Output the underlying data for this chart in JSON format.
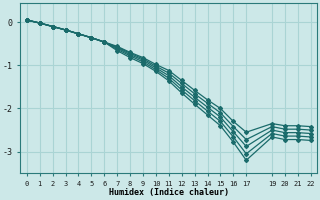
{
  "xlabel": "Humidex (Indice chaleur)",
  "ylabel": "",
  "background_color": "#cce8e8",
  "line_color": "#1a6b6b",
  "grid_color": "#aad4d4",
  "xlim": [
    -0.5,
    22.5
  ],
  "ylim": [
    -3.5,
    0.45
  ],
  "xticks": [
    0,
    1,
    2,
    3,
    4,
    5,
    6,
    7,
    8,
    9,
    10,
    11,
    12,
    13,
    14,
    15,
    16,
    17,
    19,
    20,
    21,
    22
  ],
  "yticks": [
    0,
    -1,
    -2,
    -3
  ],
  "lines": [
    {
      "x": [
        0,
        1,
        2,
        3,
        4,
        5,
        6,
        7,
        8,
        9,
        10,
        11,
        12,
        13,
        14,
        15,
        16,
        17,
        19,
        20,
        21,
        22
      ],
      "y": [
        0.05,
        -0.02,
        -0.1,
        -0.18,
        -0.27,
        -0.36,
        -0.46,
        -0.56,
        -0.7,
        -0.82,
        -0.98,
        -1.12,
        -1.35,
        -1.58,
        -1.8,
        -2.0,
        -2.3,
        -2.55,
        -2.35,
        -2.4,
        -2.4,
        -2.42
      ]
    },
    {
      "x": [
        0,
        1,
        2,
        3,
        4,
        5,
        6,
        7,
        8,
        9,
        10,
        11,
        12,
        13,
        14,
        15,
        16,
        17,
        19,
        20,
        21,
        22
      ],
      "y": [
        0.05,
        -0.02,
        -0.1,
        -0.18,
        -0.27,
        -0.36,
        -0.46,
        -0.58,
        -0.72,
        -0.85,
        -1.02,
        -1.18,
        -1.42,
        -1.66,
        -1.88,
        -2.1,
        -2.42,
        -2.72,
        -2.42,
        -2.48,
        -2.48,
        -2.5
      ]
    },
    {
      "x": [
        0,
        1,
        2,
        3,
        4,
        5,
        6,
        7,
        8,
        9,
        10,
        11,
        12,
        13,
        14,
        15,
        16,
        17,
        19,
        20,
        21,
        22
      ],
      "y": [
        0.05,
        -0.02,
        -0.1,
        -0.18,
        -0.27,
        -0.36,
        -0.46,
        -0.6,
        -0.75,
        -0.88,
        -1.06,
        -1.24,
        -1.5,
        -1.74,
        -1.97,
        -2.2,
        -2.54,
        -2.88,
        -2.5,
        -2.56,
        -2.56,
        -2.58
      ]
    },
    {
      "x": [
        0,
        1,
        2,
        3,
        4,
        5,
        6,
        7,
        8,
        9,
        10,
        11,
        12,
        13,
        14,
        15,
        16,
        17,
        19,
        20,
        21,
        22
      ],
      "y": [
        0.05,
        -0.02,
        -0.1,
        -0.18,
        -0.27,
        -0.36,
        -0.46,
        -0.63,
        -0.78,
        -0.92,
        -1.1,
        -1.3,
        -1.57,
        -1.82,
        -2.06,
        -2.3,
        -2.66,
        -3.05,
        -2.58,
        -2.64,
        -2.64,
        -2.66
      ]
    },
    {
      "x": [
        0,
        1,
        2,
        3,
        4,
        5,
        6,
        7,
        8,
        9,
        10,
        11,
        12,
        13,
        14,
        15,
        16,
        17,
        19,
        20,
        21,
        22
      ],
      "y": [
        0.05,
        -0.02,
        -0.1,
        -0.18,
        -0.27,
        -0.36,
        -0.46,
        -0.66,
        -0.82,
        -0.96,
        -1.14,
        -1.36,
        -1.64,
        -1.9,
        -2.15,
        -2.4,
        -2.78,
        -3.2,
        -2.66,
        -2.72,
        -2.72,
        -2.74
      ]
    }
  ]
}
